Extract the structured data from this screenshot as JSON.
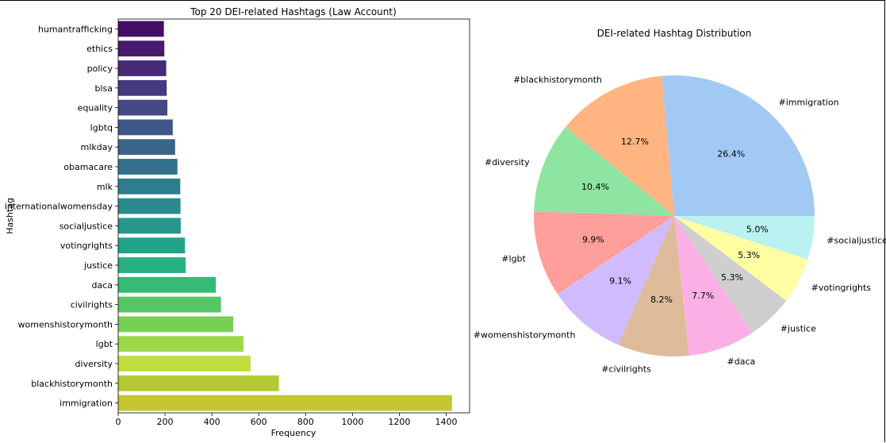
{
  "chart_data": [
    {
      "type": "bar",
      "orientation": "horizontal",
      "title": "Top 20 DEI-related Hashtags (Law Account)",
      "xlabel": "Frequency",
      "ylabel": "Hashtag",
      "xlim": [
        0,
        1500
      ],
      "xticks": [
        "0",
        "200",
        "400",
        "600",
        "800",
        "1000",
        "1200",
        "1400"
      ],
      "grid": false,
      "colormap": "viridis",
      "categories": [
        "humantrafficking",
        "ethics",
        "policy",
        "blsa",
        "equality",
        "lgbtq",
        "mlkday",
        "obamacare",
        "mlk",
        "internationalwomensday",
        "socialjustice",
        "votingrights",
        "justice",
        "daca",
        "civilrights",
        "womenshistorymonth",
        "lgbt",
        "diversity",
        "blackhistorymonth",
        "immigration"
      ],
      "values": [
        195,
        197,
        205,
        207,
        210,
        233,
        243,
        253,
        265,
        266,
        267,
        285,
        288,
        417,
        439,
        491,
        535,
        565,
        686,
        1425
      ],
      "colors": [
        "#440f63",
        "#471a6e",
        "#482a77",
        "#47397f",
        "#434a85",
        "#3f5889",
        "#39658b",
        "#34728c",
        "#2f7e8d",
        "#2b8b8c",
        "#26978a",
        "#22a387",
        "#27b080",
        "#36bb74",
        "#55c666",
        "#78cf56",
        "#9dd84a",
        "#c0dd40",
        "#b4c832",
        "#c5c732"
      ]
    },
    {
      "type": "pie",
      "title": "DEI-related Hashtag Distribution",
      "labels": [
        "#immigration",
        "#blackhistorymonth",
        "#diversity",
        "#lgbt",
        "#womenshistorymonth",
        "#civilrights",
        "#daca",
        "#justice",
        "#votingrights",
        "#socialjustice"
      ],
      "values": [
        26.4,
        12.7,
        10.4,
        9.9,
        9.1,
        8.2,
        7.7,
        5.3,
        5.3,
        5.0
      ],
      "value_labels": [
        "26.4%",
        "12.7%",
        "10.4%",
        "9.9%",
        "9.1%",
        "8.2%",
        "7.7%",
        "5.3%",
        "5.3%",
        "5.0%"
      ],
      "colors": [
        "#a1c9f4",
        "#ffb482",
        "#8de5a1",
        "#ff9f9b",
        "#d0bbff",
        "#debb9b",
        "#fab0e4",
        "#cfcfcf",
        "#fffea3",
        "#b9f2f0"
      ]
    }
  ]
}
